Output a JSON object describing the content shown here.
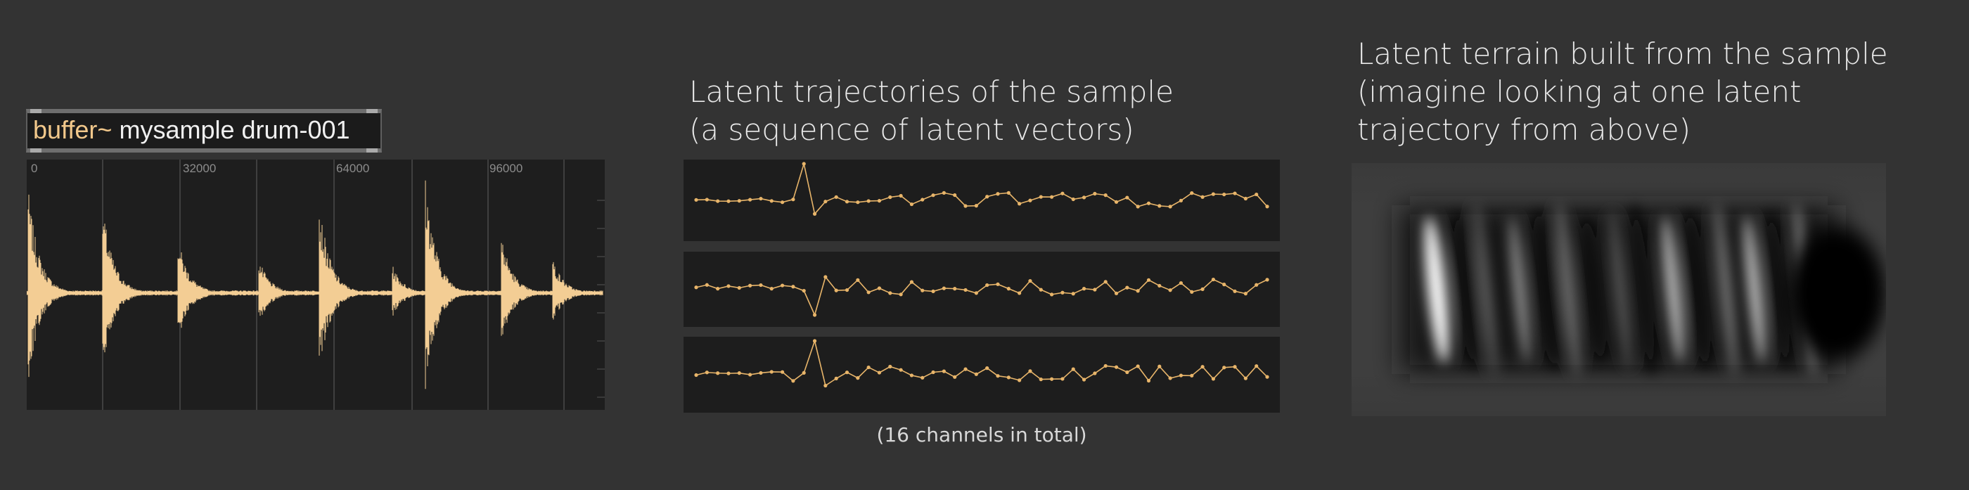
{
  "buffer": {
    "keyword": "buffer~",
    "args": "mysample drum-001"
  },
  "waveform": {
    "tick_labels": [
      "0",
      "32000",
      "64000",
      "96000"
    ],
    "color": "#f3cd94"
  },
  "trajectories": {
    "title_line1": "Latent trajectories of the sample",
    "title_line2": "(a sequence of latent vectors)",
    "caption": "(16 channels in total)",
    "line_color": "#e8b56a"
  },
  "terrain": {
    "title_line1": "Latent terrain built from the sample",
    "title_line2": "(imagine looking at one latent",
    "title_line3": "trajectory from above)"
  }
}
